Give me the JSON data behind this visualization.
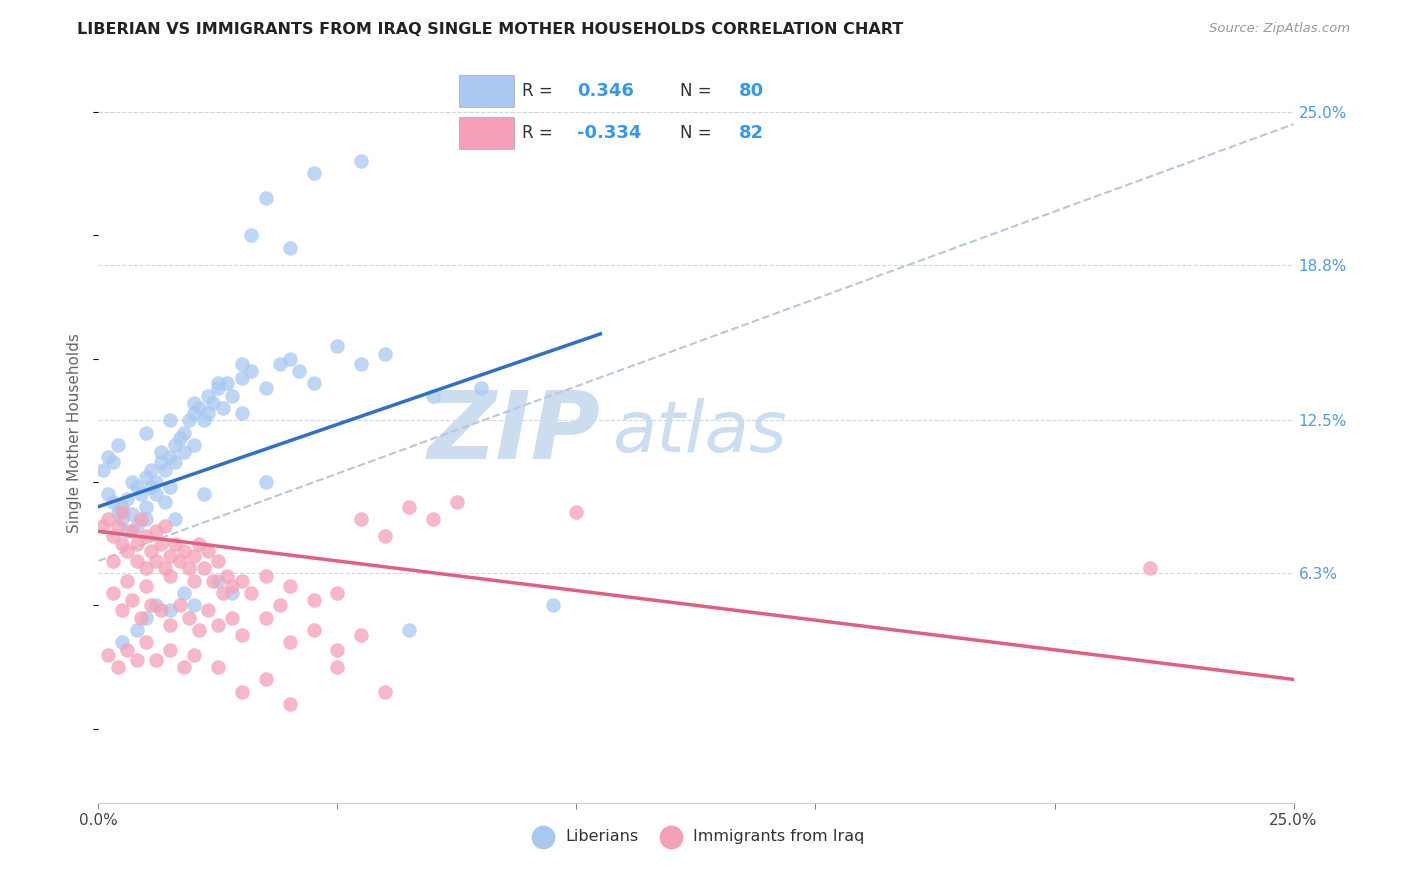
{
  "title": "LIBERIAN VS IMMIGRANTS FROM IRAQ SINGLE MOTHER HOUSEHOLDS CORRELATION CHART",
  "source": "Source: ZipAtlas.com",
  "ylabel": "Single Mother Households",
  "xlim": [
    0.0,
    25.0
  ],
  "ylim": [
    -3.0,
    27.0
  ],
  "ytick_labels": [
    "6.3%",
    "12.5%",
    "18.8%",
    "25.0%"
  ],
  "ytick_values": [
    6.3,
    12.5,
    18.8,
    25.0
  ],
  "blue_color": "#a8c8f0",
  "pink_color": "#f4a0b8",
  "blue_line_color": "#3070c8",
  "pink_line_color": "#e06080",
  "dashed_line_color": "#b8c8d8",
  "watermark_color": "#ccddf0",
  "blue_line": {
    "x0": 0,
    "y0": 9.0,
    "x1": 10.5,
    "y1": 16.0
  },
  "pink_line": {
    "x0": 0,
    "y0": 8.0,
    "x1": 25,
    "y1": 2.0
  },
  "dash_line": {
    "x0": 0,
    "y0": 6.8,
    "x1": 25,
    "y1": 24.5
  },
  "blue_scatter": [
    [
      0.2,
      9.5
    ],
    [
      0.3,
      9.2
    ],
    [
      0.4,
      8.8
    ],
    [
      0.5,
      9.0
    ],
    [
      0.5,
      8.5
    ],
    [
      0.6,
      9.3
    ],
    [
      0.7,
      8.7
    ],
    [
      0.8,
      9.8
    ],
    [
      0.8,
      8.2
    ],
    [
      0.9,
      9.5
    ],
    [
      1.0,
      10.2
    ],
    [
      1.0,
      9.0
    ],
    [
      1.0,
      8.5
    ],
    [
      1.1,
      9.8
    ],
    [
      1.1,
      10.5
    ],
    [
      1.2,
      10.0
    ],
    [
      1.2,
      9.5
    ],
    [
      1.3,
      10.8
    ],
    [
      1.3,
      11.2
    ],
    [
      1.4,
      10.5
    ],
    [
      1.5,
      11.0
    ],
    [
      1.5,
      9.8
    ],
    [
      1.6,
      11.5
    ],
    [
      1.6,
      10.8
    ],
    [
      1.7,
      11.8
    ],
    [
      1.8,
      12.0
    ],
    [
      1.8,
      11.2
    ],
    [
      1.9,
      12.5
    ],
    [
      2.0,
      12.8
    ],
    [
      2.0,
      11.5
    ],
    [
      2.1,
      13.0
    ],
    [
      2.2,
      12.5
    ],
    [
      2.3,
      13.5
    ],
    [
      2.3,
      12.8
    ],
    [
      2.4,
      13.2
    ],
    [
      2.5,
      13.8
    ],
    [
      2.6,
      13.0
    ],
    [
      2.7,
      14.0
    ],
    [
      2.8,
      13.5
    ],
    [
      3.0,
      14.2
    ],
    [
      3.0,
      12.8
    ],
    [
      3.2,
      14.5
    ],
    [
      3.5,
      13.8
    ],
    [
      3.8,
      14.8
    ],
    [
      4.0,
      15.0
    ],
    [
      4.2,
      14.5
    ],
    [
      4.5,
      14.0
    ],
    [
      5.0,
      15.5
    ],
    [
      5.5,
      14.8
    ],
    [
      6.0,
      15.2
    ],
    [
      0.5,
      3.5
    ],
    [
      0.8,
      4.0
    ],
    [
      1.0,
      4.5
    ],
    [
      1.2,
      5.0
    ],
    [
      1.5,
      4.8
    ],
    [
      1.8,
      5.5
    ],
    [
      2.0,
      5.0
    ],
    [
      2.5,
      6.0
    ],
    [
      2.8,
      5.5
    ],
    [
      3.2,
      20.0
    ],
    [
      3.5,
      21.5
    ],
    [
      4.0,
      19.5
    ],
    [
      4.5,
      22.5
    ],
    [
      5.5,
      23.0
    ],
    [
      0.1,
      10.5
    ],
    [
      0.2,
      11.0
    ],
    [
      0.3,
      10.8
    ],
    [
      0.4,
      11.5
    ],
    [
      1.0,
      12.0
    ],
    [
      1.5,
      12.5
    ],
    [
      2.0,
      13.2
    ],
    [
      2.5,
      14.0
    ],
    [
      3.0,
      14.8
    ],
    [
      6.5,
      4.0
    ],
    [
      7.0,
      13.5
    ],
    [
      8.0,
      13.8
    ],
    [
      9.5,
      5.0
    ],
    [
      0.6,
      8.0
    ],
    [
      0.7,
      10.0
    ],
    [
      1.4,
      9.2
    ],
    [
      1.6,
      8.5
    ],
    [
      2.2,
      9.5
    ],
    [
      3.5,
      10.0
    ]
  ],
  "pink_scatter": [
    [
      0.2,
      8.5
    ],
    [
      0.3,
      7.8
    ],
    [
      0.4,
      8.2
    ],
    [
      0.5,
      7.5
    ],
    [
      0.5,
      8.8
    ],
    [
      0.6,
      7.2
    ],
    [
      0.7,
      8.0
    ],
    [
      0.8,
      7.5
    ],
    [
      0.8,
      6.8
    ],
    [
      0.9,
      8.5
    ],
    [
      1.0,
      7.8
    ],
    [
      1.0,
      6.5
    ],
    [
      1.1,
      7.2
    ],
    [
      1.2,
      8.0
    ],
    [
      1.2,
      6.8
    ],
    [
      1.3,
      7.5
    ],
    [
      1.4,
      8.2
    ],
    [
      1.5,
      7.0
    ],
    [
      1.5,
      6.2
    ],
    [
      1.6,
      7.5
    ],
    [
      1.7,
      6.8
    ],
    [
      1.8,
      7.2
    ],
    [
      1.9,
      6.5
    ],
    [
      2.0,
      7.0
    ],
    [
      2.0,
      6.0
    ],
    [
      2.1,
      7.5
    ],
    [
      2.2,
      6.5
    ],
    [
      2.3,
      7.2
    ],
    [
      2.4,
      6.0
    ],
    [
      2.5,
      6.8
    ],
    [
      2.6,
      5.5
    ],
    [
      2.7,
      6.2
    ],
    [
      2.8,
      5.8
    ],
    [
      3.0,
      6.0
    ],
    [
      3.2,
      5.5
    ],
    [
      3.5,
      6.2
    ],
    [
      3.8,
      5.0
    ],
    [
      4.0,
      5.8
    ],
    [
      4.5,
      5.2
    ],
    [
      5.0,
      5.5
    ],
    [
      5.5,
      8.5
    ],
    [
      6.0,
      7.8
    ],
    [
      6.5,
      9.0
    ],
    [
      7.0,
      8.5
    ],
    [
      0.3,
      5.5
    ],
    [
      0.5,
      4.8
    ],
    [
      0.7,
      5.2
    ],
    [
      0.9,
      4.5
    ],
    [
      1.1,
      5.0
    ],
    [
      1.3,
      4.8
    ],
    [
      1.5,
      4.2
    ],
    [
      1.7,
      5.0
    ],
    [
      1.9,
      4.5
    ],
    [
      2.1,
      4.0
    ],
    [
      2.3,
      4.8
    ],
    [
      2.5,
      4.2
    ],
    [
      2.8,
      4.5
    ],
    [
      3.0,
      3.8
    ],
    [
      3.5,
      4.5
    ],
    [
      4.0,
      3.5
    ],
    [
      4.5,
      4.0
    ],
    [
      5.0,
      3.2
    ],
    [
      5.5,
      3.8
    ],
    [
      0.2,
      3.0
    ],
    [
      0.4,
      2.5
    ],
    [
      0.6,
      3.2
    ],
    [
      0.8,
      2.8
    ],
    [
      1.0,
      3.5
    ],
    [
      1.2,
      2.8
    ],
    [
      1.5,
      3.2
    ],
    [
      1.8,
      2.5
    ],
    [
      2.0,
      3.0
    ],
    [
      2.5,
      2.5
    ],
    [
      3.0,
      1.5
    ],
    [
      3.5,
      2.0
    ],
    [
      4.0,
      1.0
    ],
    [
      5.0,
      2.5
    ],
    [
      6.0,
      1.5
    ],
    [
      0.1,
      8.2
    ],
    [
      0.3,
      6.8
    ],
    [
      0.6,
      6.0
    ],
    [
      1.0,
      5.8
    ],
    [
      1.4,
      6.5
    ],
    [
      22.0,
      6.5
    ],
    [
      7.5,
      9.2
    ],
    [
      10.0,
      8.8
    ]
  ]
}
